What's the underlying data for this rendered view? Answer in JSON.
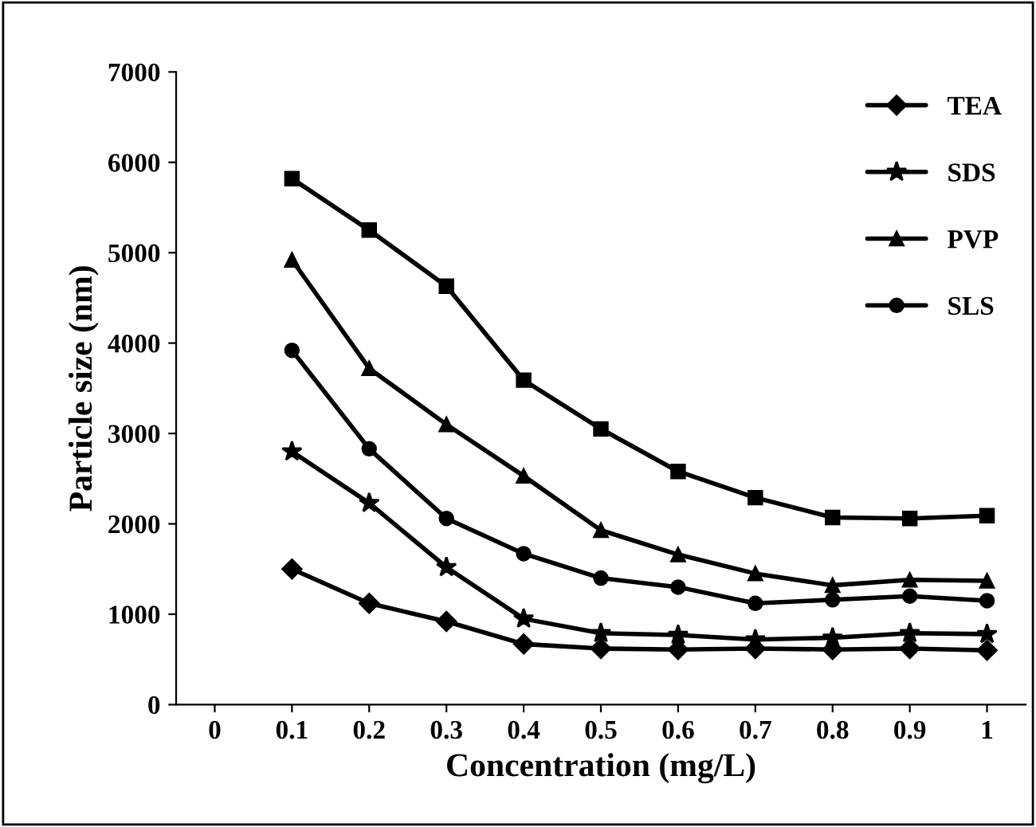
{
  "chart_data": {
    "type": "line",
    "xlabel": "Concentration (mg/L)",
    "ylabel": "Particle size (nm)",
    "categories": [
      "0",
      "0.1",
      "0.2",
      "0.3",
      "0.4",
      "0.5",
      "0.6",
      "0.7",
      "0.8",
      "0.9",
      "1"
    ],
    "ylim": [
      0,
      7000
    ],
    "yticks": [
      0,
      1000,
      2000,
      3000,
      4000,
      5000,
      6000,
      7000
    ],
    "grid": false,
    "legend": "top right",
    "line_style": "solid",
    "series": [
      {
        "name": "TEA",
        "color": "#000000",
        "marker": "diamond",
        "values": [
          null,
          1500,
          1120,
          920,
          670,
          620,
          610,
          620,
          610,
          620,
          600
        ]
      },
      {
        "name": "SDS",
        "color": "#000000",
        "marker": "star",
        "values": [
          null,
          2800,
          2230,
          1520,
          950,
          790,
          770,
          720,
          740,
          790,
          780
        ]
      },
      {
        "name": "PVP",
        "color": "#000000",
        "marker": "triangle",
        "values": [
          null,
          4920,
          3720,
          3100,
          2530,
          1930,
          1660,
          1450,
          1320,
          1380,
          1370
        ]
      },
      {
        "name": "SLS",
        "color": "#000000",
        "marker": "circle",
        "values": [
          null,
          3920,
          2830,
          2060,
          1670,
          1400,
          1300,
          1120,
          1160,
          1200,
          1150
        ]
      },
      {
        "color": "#000000",
        "marker": "square",
        "values": [
          null,
          5820,
          5250,
          4630,
          3590,
          3050,
          2580,
          2290,
          2070,
          2060,
          2090
        ]
      }
    ]
  }
}
